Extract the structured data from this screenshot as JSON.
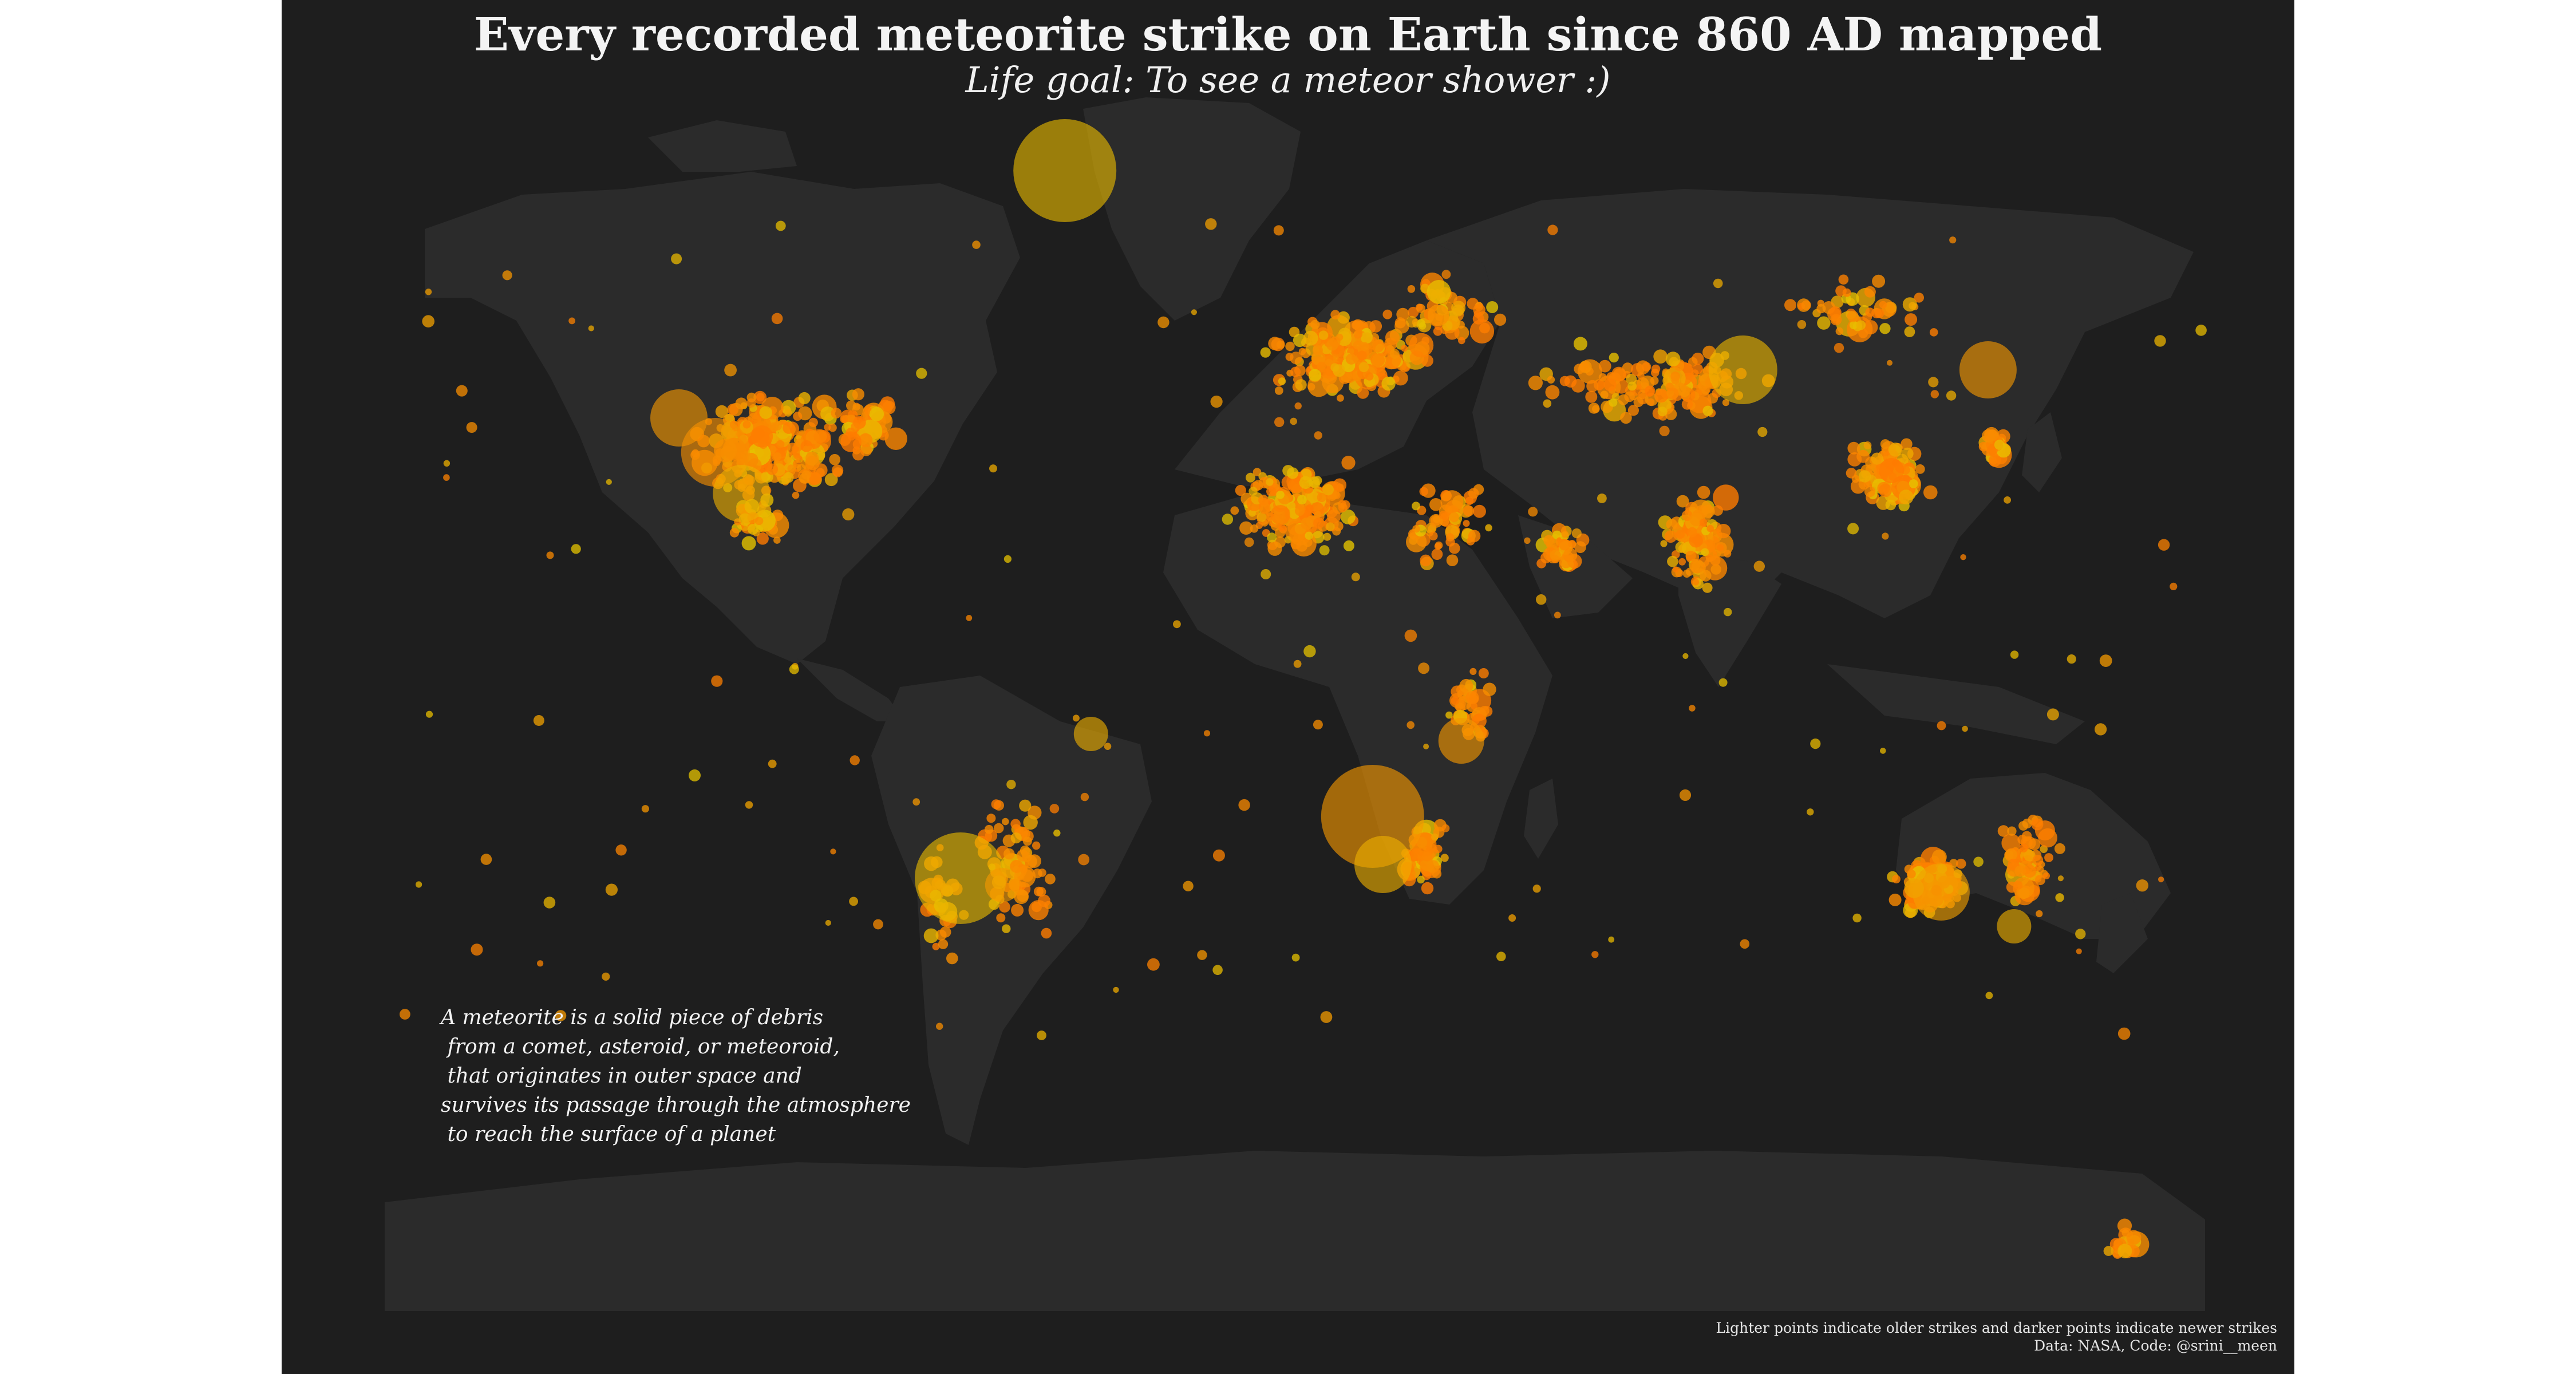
{
  "title": "Every recorded meteorite strike on Earth since 860 AD mapped",
  "subtitle": "Life goal: To see a meteor shower :)",
  "annotation_lines": [
    "A meteorite is a solid piece of debris",
    " from a comet, asteroid, or meteoroid,",
    " that originates in outer space and",
    "survives its passage through the atmosphere",
    " to reach the surface of a planet"
  ],
  "caption": {
    "line1": "Lighter points indicate older strikes and darker points indicate newer strikes",
    "line2": "Data: NASA, Code: @srini__meen"
  },
  "colors": {
    "background": "#1e1e1e",
    "land": "#2b2b2b",
    "point_older": "#e5c400",
    "point_newer": "#ff7a00"
  },
  "chart_data": {
    "type": "scatter",
    "projection": "equirectangular",
    "xlim": [
      -180,
      180
    ],
    "ylim": [
      -90,
      85
    ],
    "encoding": {
      "color": "lighter = older strike, darker = newer strike",
      "size": "meteorite mass"
    },
    "big_points": [
      {
        "lon": -43,
        "lat": 76,
        "size": 9,
        "tone": 0.15
      },
      {
        "lon": -117,
        "lat": 40,
        "size": 5,
        "tone": 0.6
      },
      {
        "lon": -110,
        "lat": 35,
        "size": 6,
        "tone": 0.7
      },
      {
        "lon": -105,
        "lat": 29,
        "size": 5,
        "tone": 0.3
      },
      {
        "lon": -63,
        "lat": -27,
        "size": 8,
        "tone": 0.15
      },
      {
        "lon": -55,
        "lat": -28,
        "size": 3,
        "tone": 0.6
      },
      {
        "lon": -38,
        "lat": -6,
        "size": 3,
        "tone": 0.3
      },
      {
        "lon": 16,
        "lat": -18,
        "size": 9,
        "tone": 0.6
      },
      {
        "lon": 18,
        "lat": -25,
        "size": 5,
        "tone": 0.3
      },
      {
        "lon": 33,
        "lat": -7,
        "size": 4,
        "tone": 0.6
      },
      {
        "lon": 87,
        "lat": 47,
        "size": 6,
        "tone": 0.2
      },
      {
        "lon": 134,
        "lat": 47,
        "size": 5,
        "tone": 0.6
      },
      {
        "lon": 125,
        "lat": -29,
        "size": 5,
        "tone": 0.5
      },
      {
        "lon": 139,
        "lat": -34,
        "size": 3,
        "tone": 0.3
      }
    ],
    "clusters": [
      {
        "lon": -100,
        "lat": 36,
        "spread_lon": 16,
        "spread_lat": 9,
        "count": 320
      },
      {
        "lon": -82,
        "lat": 39,
        "spread_lon": 8,
        "spread_lat": 6,
        "count": 70
      },
      {
        "lon": -102,
        "lat": 25,
        "spread_lon": 6,
        "spread_lat": 5,
        "count": 40
      },
      {
        "lon": -52,
        "lat": -25,
        "spread_lon": 9,
        "spread_lat": 12,
        "count": 80
      },
      {
        "lon": -67,
        "lat": -30,
        "spread_lon": 4,
        "spread_lat": 10,
        "count": 30
      },
      {
        "lon": 12,
        "lat": 49,
        "spread_lon": 18,
        "spread_lat": 7,
        "count": 230
      },
      {
        "lon": 30,
        "lat": 55,
        "spread_lon": 14,
        "spread_lat": 6,
        "count": 60
      },
      {
        "lon": 2,
        "lat": 27,
        "spread_lon": 15,
        "spread_lat": 8,
        "count": 180
      },
      {
        "lon": 30,
        "lat": 25,
        "spread_lon": 10,
        "spread_lat": 8,
        "count": 60
      },
      {
        "lon": 52,
        "lat": 21,
        "spread_lon": 6,
        "spread_lat": 4,
        "count": 50
      },
      {
        "lon": 26,
        "lat": -24,
        "spread_lon": 6,
        "spread_lat": 6,
        "count": 60
      },
      {
        "lon": 35,
        "lat": -2,
        "spread_lon": 5,
        "spread_lat": 8,
        "count": 40
      },
      {
        "lon": 78,
        "lat": 22,
        "spread_lon": 8,
        "spread_lat": 8,
        "count": 110
      },
      {
        "lon": 70,
        "lat": 45,
        "spread_lon": 30,
        "spread_lat": 7,
        "count": 140
      },
      {
        "lon": 115,
        "lat": 32,
        "spread_lon": 9,
        "spread_lat": 7,
        "count": 130
      },
      {
        "lon": 136,
        "lat": 36,
        "spread_lon": 4,
        "spread_lat": 3,
        "count": 40
      },
      {
        "lon": 110,
        "lat": 55,
        "spread_lon": 18,
        "spread_lat": 8,
        "count": 50
      },
      {
        "lon": 123,
        "lat": -28,
        "spread_lon": 8,
        "spread_lat": 5,
        "count": 170
      },
      {
        "lon": 142,
        "lat": -25,
        "spread_lon": 7,
        "spread_lat": 8,
        "count": 70
      },
      {
        "lon": 160,
        "lat": -80,
        "spread_lon": 5,
        "spread_lat": 3,
        "count": 20
      }
    ]
  }
}
